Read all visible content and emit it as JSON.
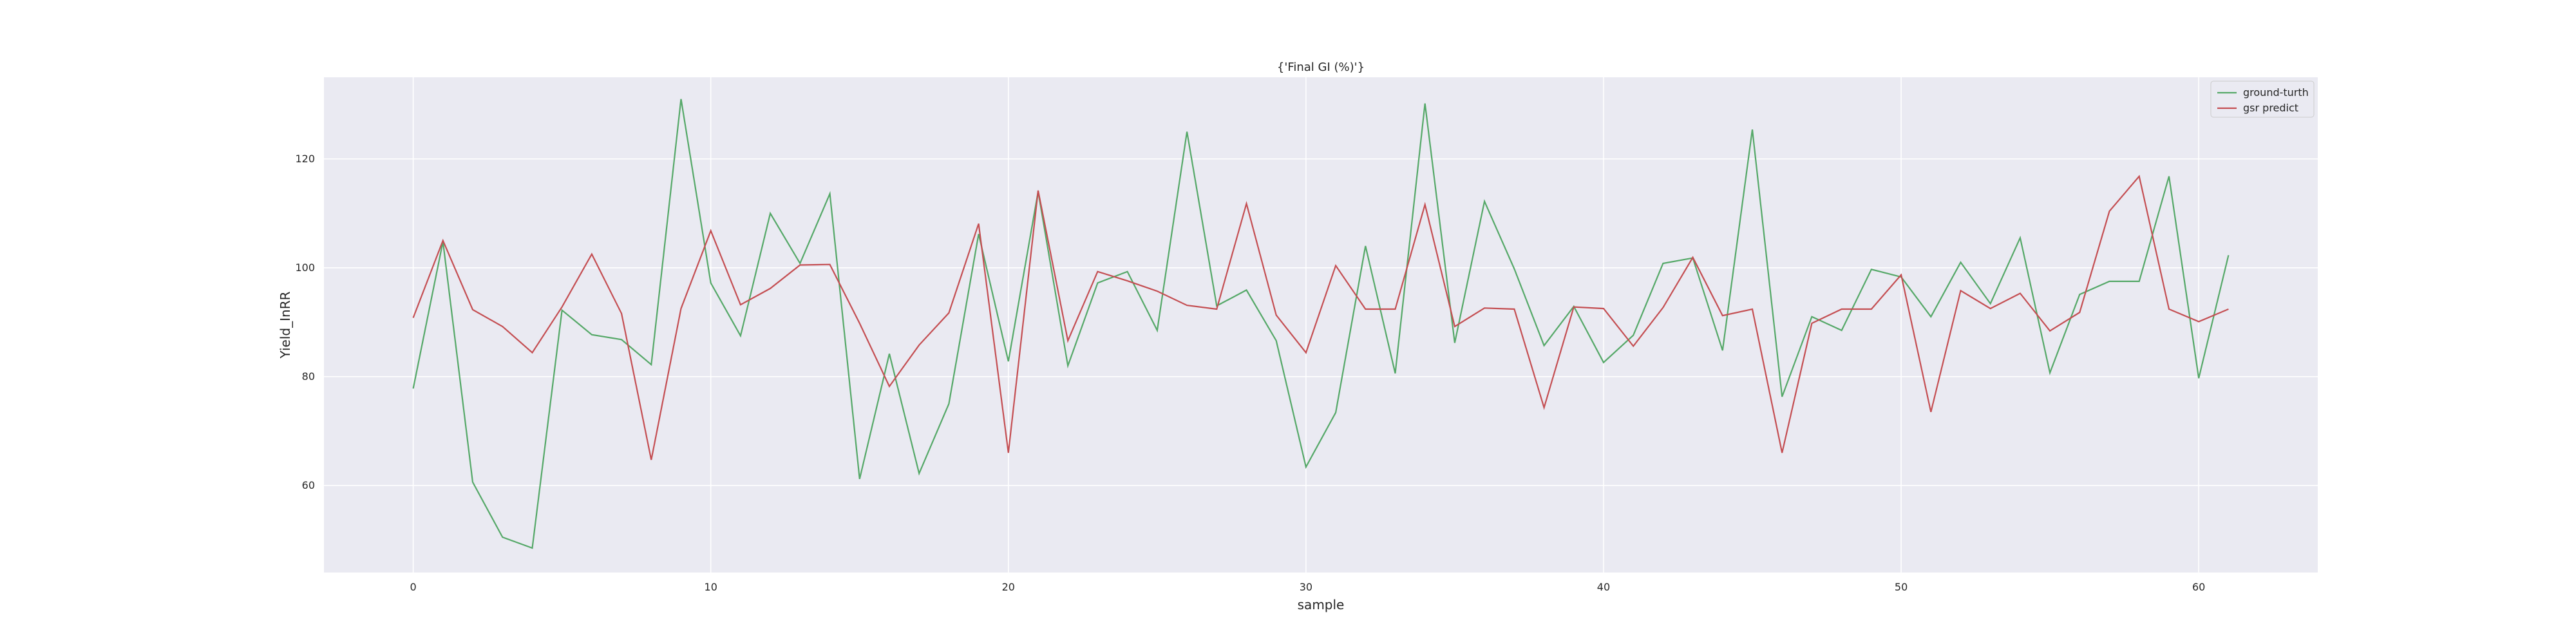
{
  "chart_data": {
    "type": "line",
    "title": "{'Final GI (%)'}",
    "xlabel": "sample",
    "ylabel": "Yield_InRR",
    "xlim": [
      -3,
      64
    ],
    "ylim": [
      44,
      135
    ],
    "xticks": [
      0,
      10,
      20,
      30,
      40,
      50,
      60
    ],
    "yticks": [
      60,
      80,
      100,
      120
    ],
    "grid": true,
    "legend_position": "top-right",
    "background_color": "#eaeaf2",
    "grid_color": "#ffffff",
    "x": [
      0,
      1,
      2,
      3,
      4,
      5,
      6,
      7,
      8,
      9,
      10,
      11,
      12,
      13,
      14,
      15,
      16,
      17,
      18,
      19,
      20,
      21,
      22,
      23,
      24,
      25,
      26,
      27,
      28,
      29,
      30,
      31,
      32,
      33,
      34,
      35,
      36,
      37,
      38,
      39,
      40,
      41,
      42,
      43,
      44,
      45,
      46,
      47,
      48,
      49,
      50,
      51,
      52,
      53,
      54,
      55,
      56,
      57,
      58,
      59,
      60,
      61
    ],
    "series": [
      {
        "name": "ground-turth",
        "color": "#55a868",
        "values": [
          77.8,
          104.8,
          60.6,
          50.5,
          48.5,
          92.2,
          87.7,
          86.8,
          82.2,
          131.0,
          97.2,
          87.5,
          110.0,
          100.8,
          113.6,
          61.2,
          84.2,
          62.2,
          75.0,
          106.2,
          82.8,
          114.0,
          82.0,
          97.2,
          99.3,
          88.5,
          125.0,
          93.0,
          95.9,
          86.6,
          63.4,
          73.4,
          104.0,
          80.6,
          130.2,
          86.2,
          112.2,
          99.8,
          85.7,
          92.9,
          82.6,
          87.6,
          100.8,
          101.8,
          84.8,
          125.4,
          76.3,
          91.0,
          88.5,
          99.7,
          98.3,
          91.0,
          101.0,
          93.4,
          105.5,
          80.7,
          95.1,
          97.5,
          97.5,
          116.8,
          79.7,
          102.3
        ]
      },
      {
        "name": "gsr predict",
        "color": "#c44e52",
        "values": [
          90.8,
          105.0,
          92.3,
          89.2,
          84.4,
          92.8,
          102.5,
          91.6,
          64.7,
          92.5,
          106.8,
          93.2,
          96.2,
          100.5,
          100.6,
          89.8,
          78.2,
          85.8,
          91.7,
          108.1,
          66.0,
          114.2,
          86.6,
          99.3,
          97.6,
          95.7,
          93.1,
          92.4,
          111.8,
          91.3,
          84.4,
          100.4,
          92.4,
          92.4,
          111.6,
          89.2,
          92.6,
          92.4,
          74.3,
          92.8,
          92.5,
          85.6,
          92.7,
          101.9,
          91.2,
          92.4,
          66.0,
          89.8,
          92.4,
          92.4,
          98.7,
          73.5,
          95.8,
          92.5,
          95.3,
          88.4,
          91.8,
          110.4,
          116.8,
          92.4,
          90.1,
          92.4
        ]
      }
    ]
  }
}
